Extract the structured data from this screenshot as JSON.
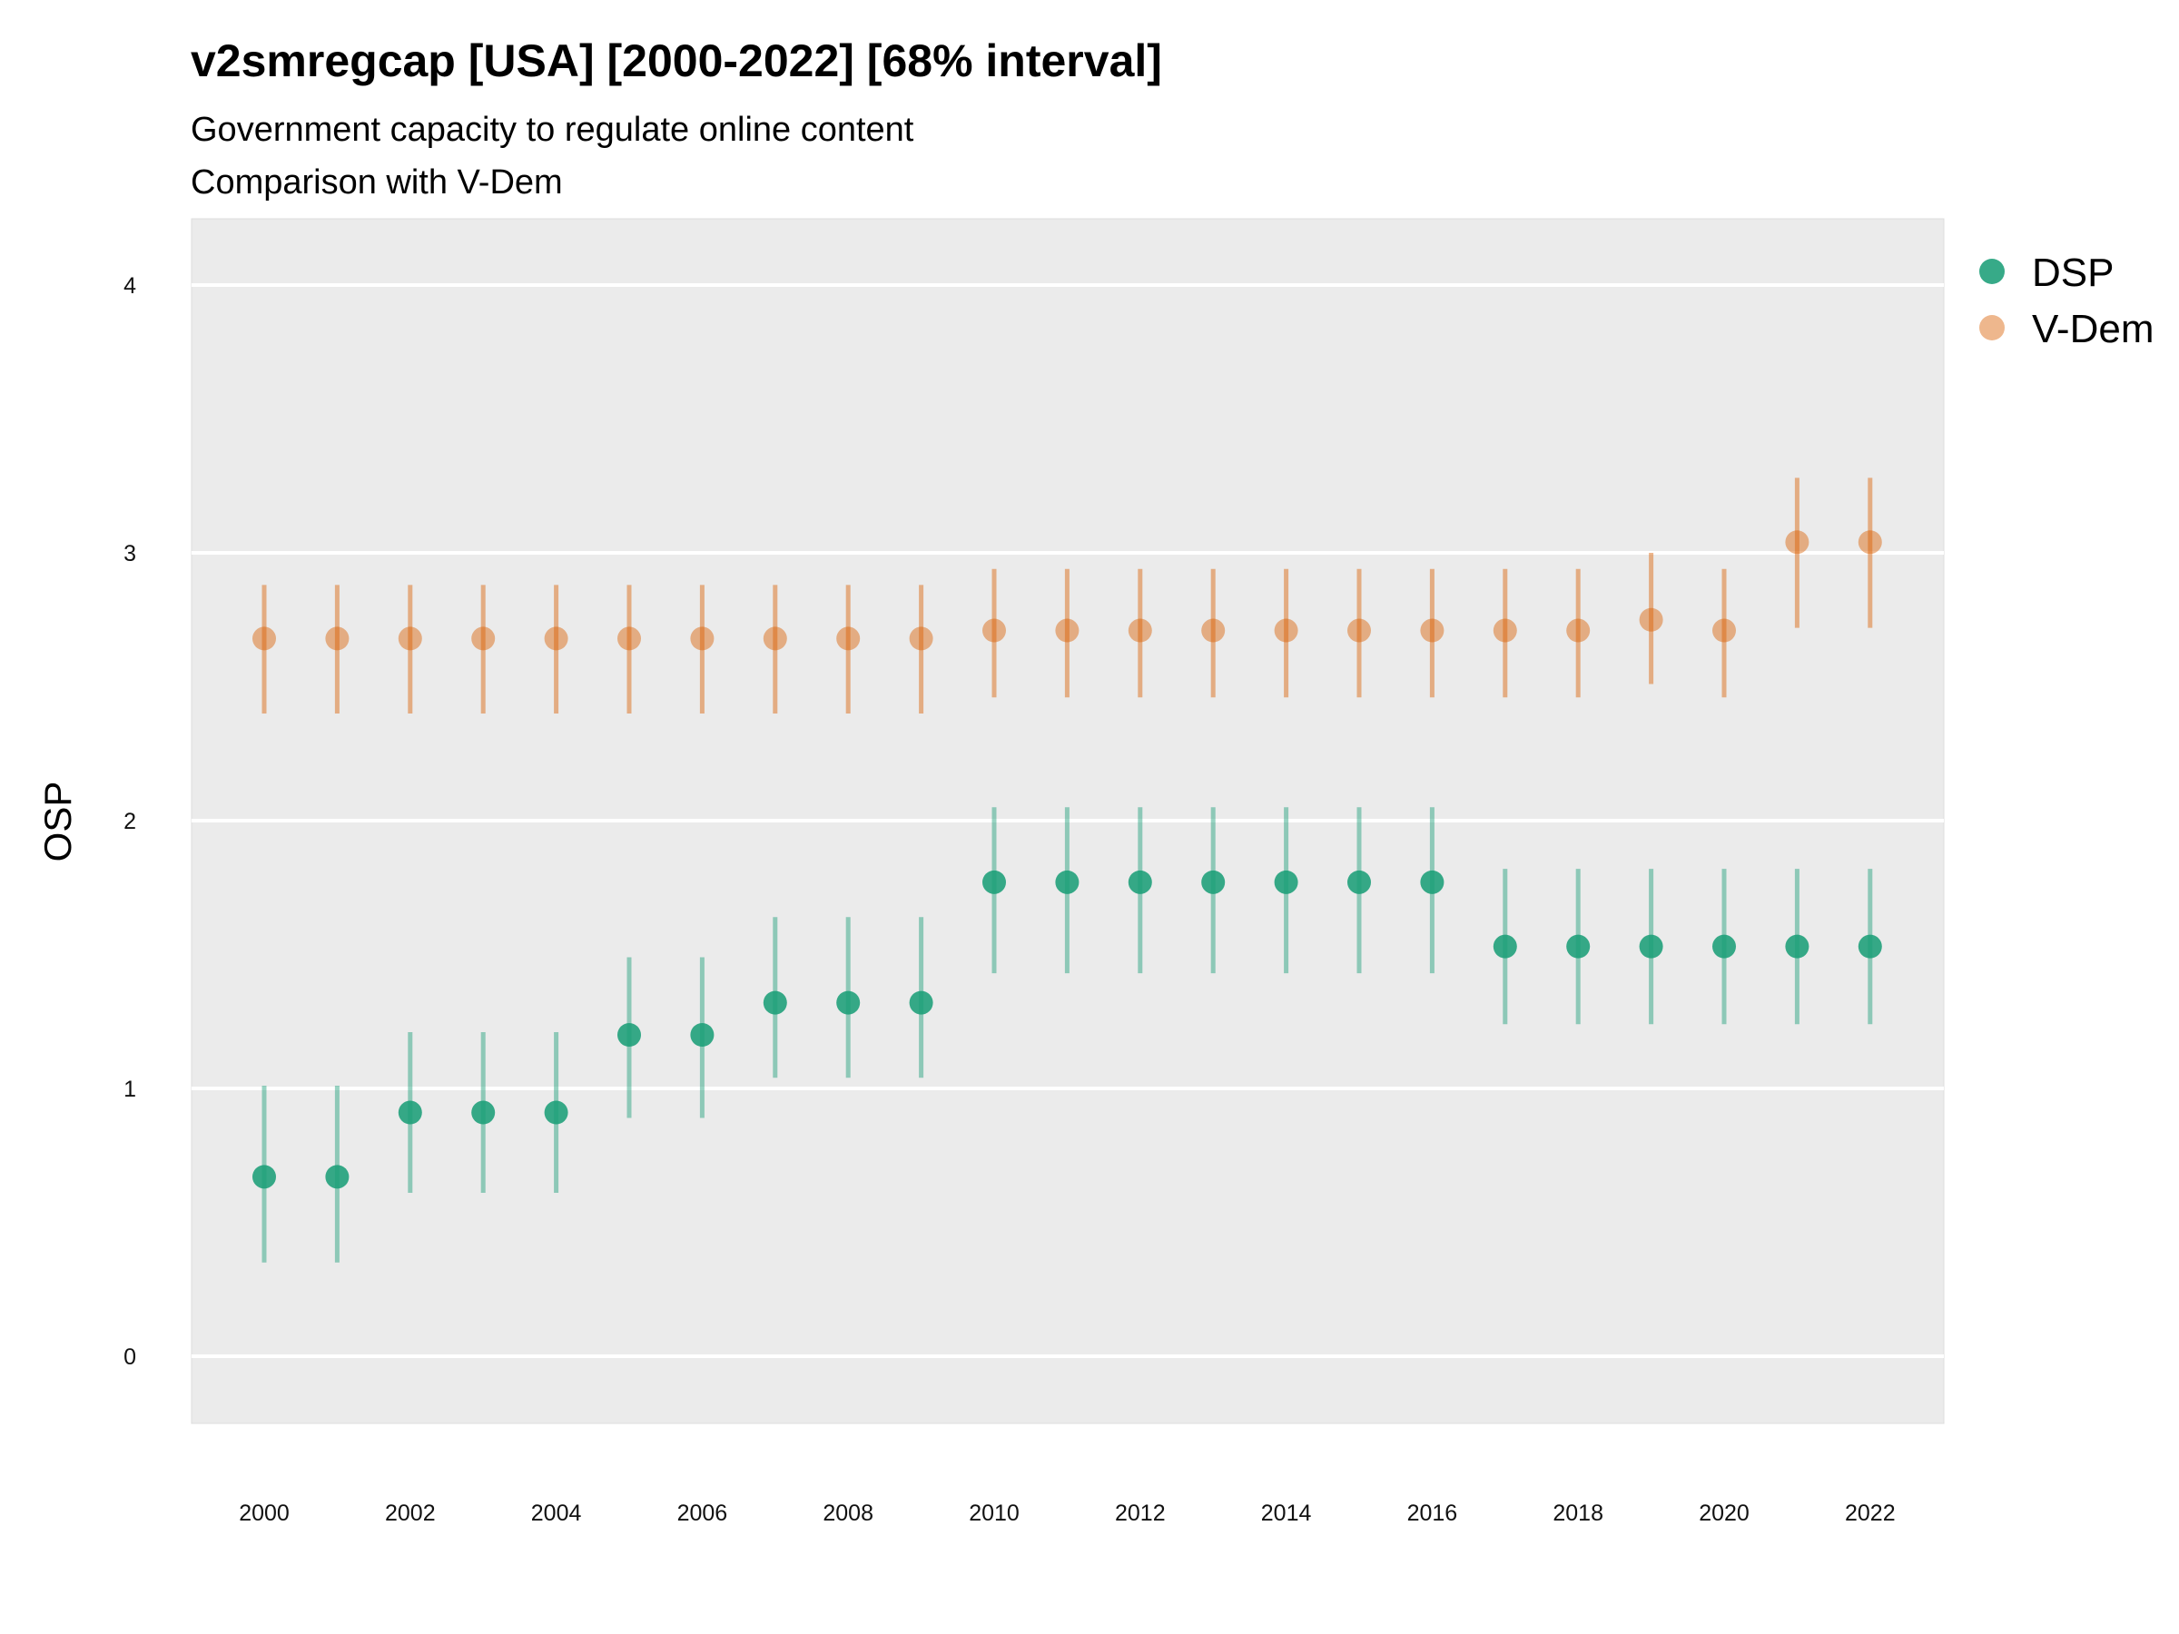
{
  "title": "v2smregcap [USA] [2000-2022] [68% interval]",
  "subtitle_line1": "Government capacity to regulate online content",
  "subtitle_line2": "Comparison with V-Dem",
  "chart_data": {
    "type": "scatter",
    "title": "v2smregcap [USA] [2000-2022] [68% interval]",
    "subtitle": "Government capacity to regulate online content / Comparison with V-Dem",
    "xlabel": "",
    "ylabel": "OSP",
    "xlim": [
      1999,
      2023
    ],
    "ylim": [
      -0.25,
      4.25
    ],
    "x_ticks": [
      2000,
      2002,
      2004,
      2006,
      2008,
      2010,
      2012,
      2014,
      2016,
      2018,
      2020,
      2022
    ],
    "y_ticks": [
      0,
      1,
      2,
      3,
      4
    ],
    "grid": true,
    "panel_background": "#ebebeb",
    "legend_position": "right",
    "x": [
      2000,
      2001,
      2002,
      2003,
      2004,
      2005,
      2006,
      2007,
      2008,
      2009,
      2010,
      2011,
      2012,
      2013,
      2014,
      2015,
      2016,
      2017,
      2018,
      2019,
      2020,
      2021,
      2022
    ],
    "series": [
      {
        "name": "DSP",
        "color": "#1b9e77",
        "values": [
          0.67,
          0.67,
          0.91,
          0.91,
          0.91,
          1.2,
          1.2,
          1.32,
          1.32,
          1.32,
          1.77,
          1.77,
          1.77,
          1.77,
          1.77,
          1.77,
          1.77,
          1.53,
          1.53,
          1.53,
          1.53,
          1.53,
          1.53
        ],
        "lower": [
          0.35,
          0.35,
          0.61,
          0.61,
          0.61,
          0.89,
          0.89,
          1.04,
          1.04,
          1.04,
          1.43,
          1.43,
          1.43,
          1.43,
          1.43,
          1.43,
          1.43,
          1.24,
          1.24,
          1.24,
          1.24,
          1.24,
          1.24
        ],
        "upper": [
          1.01,
          1.01,
          1.21,
          1.21,
          1.21,
          1.49,
          1.49,
          1.64,
          1.64,
          1.64,
          2.05,
          2.05,
          2.05,
          2.05,
          2.05,
          2.05,
          2.05,
          1.82,
          1.82,
          1.82,
          1.82,
          1.82,
          1.82
        ]
      },
      {
        "name": "V-Dem",
        "color": "#d95f02",
        "values": [
          2.68,
          2.68,
          2.68,
          2.68,
          2.68,
          2.68,
          2.68,
          2.68,
          2.68,
          2.68,
          2.71,
          2.71,
          2.71,
          2.71,
          2.71,
          2.71,
          2.71,
          2.71,
          2.71,
          2.75,
          2.71,
          3.04,
          3.04
        ],
        "lower": [
          2.4,
          2.4,
          2.4,
          2.4,
          2.4,
          2.4,
          2.4,
          2.4,
          2.4,
          2.4,
          2.46,
          2.46,
          2.46,
          2.46,
          2.46,
          2.46,
          2.46,
          2.46,
          2.46,
          2.51,
          2.46,
          2.72,
          2.72
        ],
        "upper": [
          2.88,
          2.88,
          2.88,
          2.88,
          2.88,
          2.88,
          2.88,
          2.88,
          2.88,
          2.88,
          2.94,
          2.94,
          2.94,
          2.94,
          2.94,
          2.94,
          2.94,
          2.94,
          2.94,
          3.0,
          2.94,
          3.28,
          3.28
        ]
      }
    ]
  }
}
